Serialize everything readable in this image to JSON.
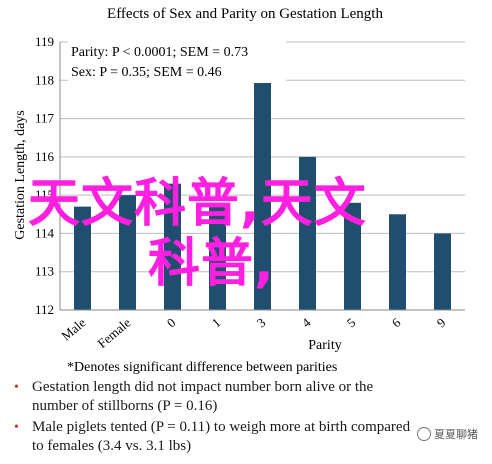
{
  "chart_data": {
    "type": "bar",
    "title": "Effects of Sex and Parity on Gestation Length",
    "ylabel": "Gestation Length, days",
    "xlabel": "Parity",
    "ylim": [
      112,
      119
    ],
    "yticks": [
      "112",
      "113",
      "114",
      "115",
      "116",
      "117",
      "118",
      "119"
    ],
    "categories": [
      "Male",
      "Female",
      "0",
      "1",
      "3",
      "4",
      "5",
      "6",
      "9"
    ],
    "values": [
      114.7,
      115.0,
      115.3,
      114.8,
      118.0,
      116.0,
      114.8,
      114.5,
      114.0
    ],
    "bar_color": "#1f4e6e",
    "annotations": [
      "Parity: P < 0.0001; SEM = 0.73",
      "Sex: P = 0.35; SEM = 0.46"
    ],
    "significance_marker": "*",
    "footnote": "*Denotes significant difference between parities",
    "grid": true
  },
  "bullets": [
    "Gestation length did not impact number born alive or the\nnumber of stillborns (P = 0.16)",
    "Male piglets tented (P = 0.11) to weigh more at birth compared\nto females (3.4 vs. 3.1 lbs)"
  ],
  "overlay": {
    "line1": "天文科普,天文",
    "line2": "科普,"
  },
  "watermark": "夏夏聊猪"
}
